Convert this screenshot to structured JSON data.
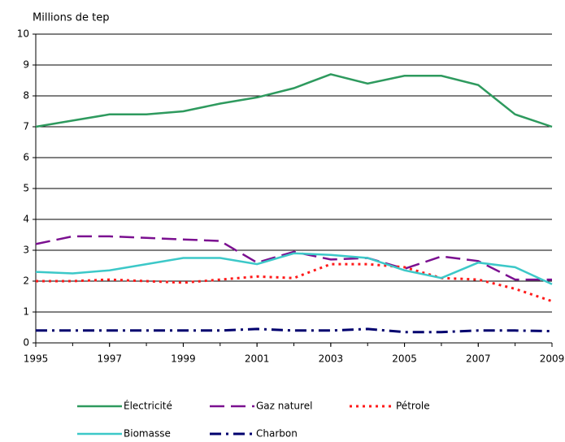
{
  "chart_data": {
    "type": "line",
    "y_label": "Millions de tep",
    "x": [
      1995,
      1996,
      1997,
      1998,
      1999,
      2000,
      2001,
      2002,
      2003,
      2004,
      2005,
      2006,
      2007,
      2008,
      2009
    ],
    "xlim": [
      1995,
      2009
    ],
    "xticks": [
      1995,
      1997,
      1999,
      2001,
      2003,
      2005,
      2007,
      2009
    ],
    "ylim": [
      0,
      10
    ],
    "yticks": [
      0,
      1,
      2,
      3,
      4,
      5,
      6,
      7,
      8,
      9,
      10
    ],
    "grid": true,
    "series": [
      {
        "name": "Électricité",
        "color": "#2e9a5e",
        "style": "solid",
        "values": [
          7.0,
          7.2,
          7.4,
          7.4,
          7.5,
          7.75,
          7.95,
          8.25,
          8.7,
          8.4,
          8.65,
          8.65,
          8.35,
          7.4,
          7.0
        ]
      },
      {
        "name": "Gaz naturel",
        "color": "#7b1090",
        "style": "dash",
        "values": [
          3.2,
          3.45,
          3.45,
          3.4,
          3.35,
          3.3,
          2.6,
          2.95,
          2.7,
          2.75,
          2.4,
          2.8,
          2.65,
          2.05,
          2.05
        ]
      },
      {
        "name": "Pétrole",
        "color": "#ff1a1a",
        "style": "dot",
        "values": [
          2.0,
          2.0,
          2.05,
          2.0,
          1.95,
          2.05,
          2.15,
          2.1,
          2.55,
          2.55,
          2.45,
          2.1,
          2.05,
          1.75,
          1.35
        ]
      },
      {
        "name": "Biomasse",
        "color": "#3cc8c8",
        "style": "solid",
        "values": [
          2.3,
          2.25,
          2.35,
          2.55,
          2.75,
          2.75,
          2.55,
          2.9,
          2.85,
          2.75,
          2.35,
          2.1,
          2.6,
          2.45,
          1.9
        ]
      },
      {
        "name": "Charbon",
        "color": "#00006e",
        "style": "dashdot",
        "values": [
          0.4,
          0.4,
          0.4,
          0.4,
          0.4,
          0.4,
          0.45,
          0.4,
          0.4,
          0.45,
          0.35,
          0.35,
          0.4,
          0.4,
          0.38
        ]
      }
    ]
  }
}
